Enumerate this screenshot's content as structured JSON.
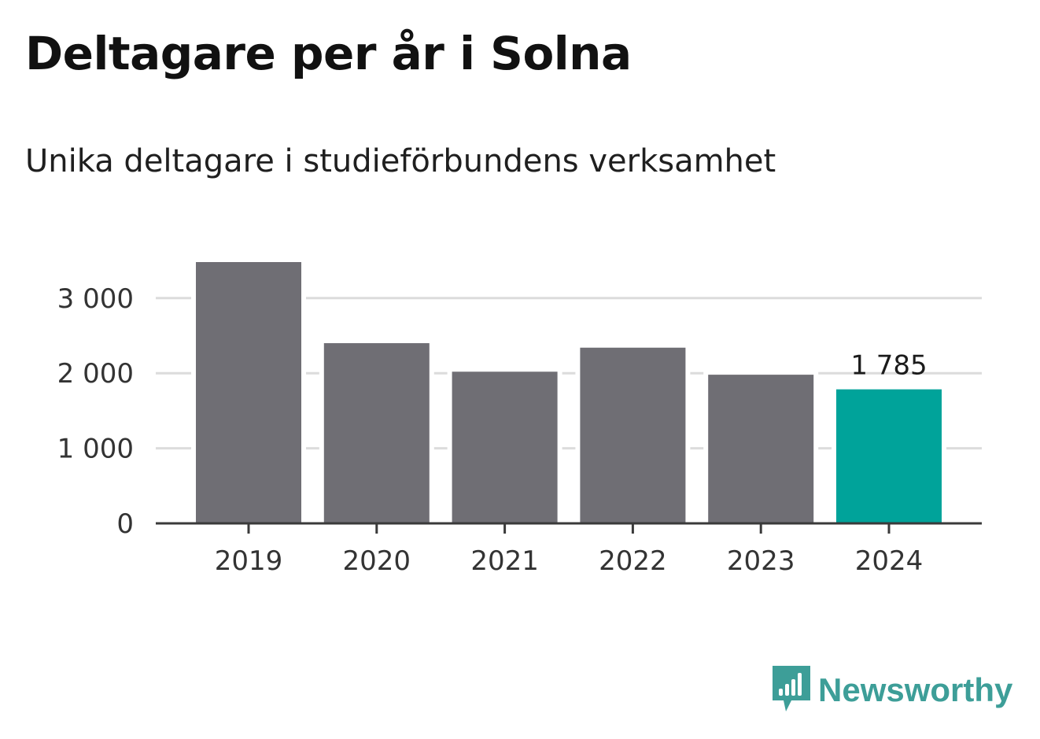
{
  "title": "Deltagare per år i Solna",
  "subtitle": "Unika deltagare i studieförbundens verksamhet",
  "brand": {
    "name": "Newsworthy",
    "color": "#3d9e98",
    "icon": "newsworthy-logo-icon"
  },
  "colors": {
    "bar": "#6f6e74",
    "highlight": "#00a39a",
    "grid": "#dcdcdc",
    "axis": "#3a3a3a"
  },
  "chart_data": {
    "type": "bar",
    "categories": [
      "2019",
      "2020",
      "2021",
      "2022",
      "2023",
      "2024"
    ],
    "values": [
      3480,
      2400,
      2020,
      2340,
      1980,
      1785
    ],
    "highlight_index": 5,
    "data_labels": [
      {
        "index": 5,
        "text": "1 785"
      }
    ],
    "y_ticks": [
      {
        "value": 0,
        "label": "0"
      },
      {
        "value": 1000,
        "label": "1 000"
      },
      {
        "value": 2000,
        "label": "2 000"
      },
      {
        "value": 3000,
        "label": "3 000"
      }
    ],
    "ylim": [
      0,
      3600
    ],
    "xlabel": "",
    "ylabel": "",
    "grid": true,
    "legend": false
  }
}
